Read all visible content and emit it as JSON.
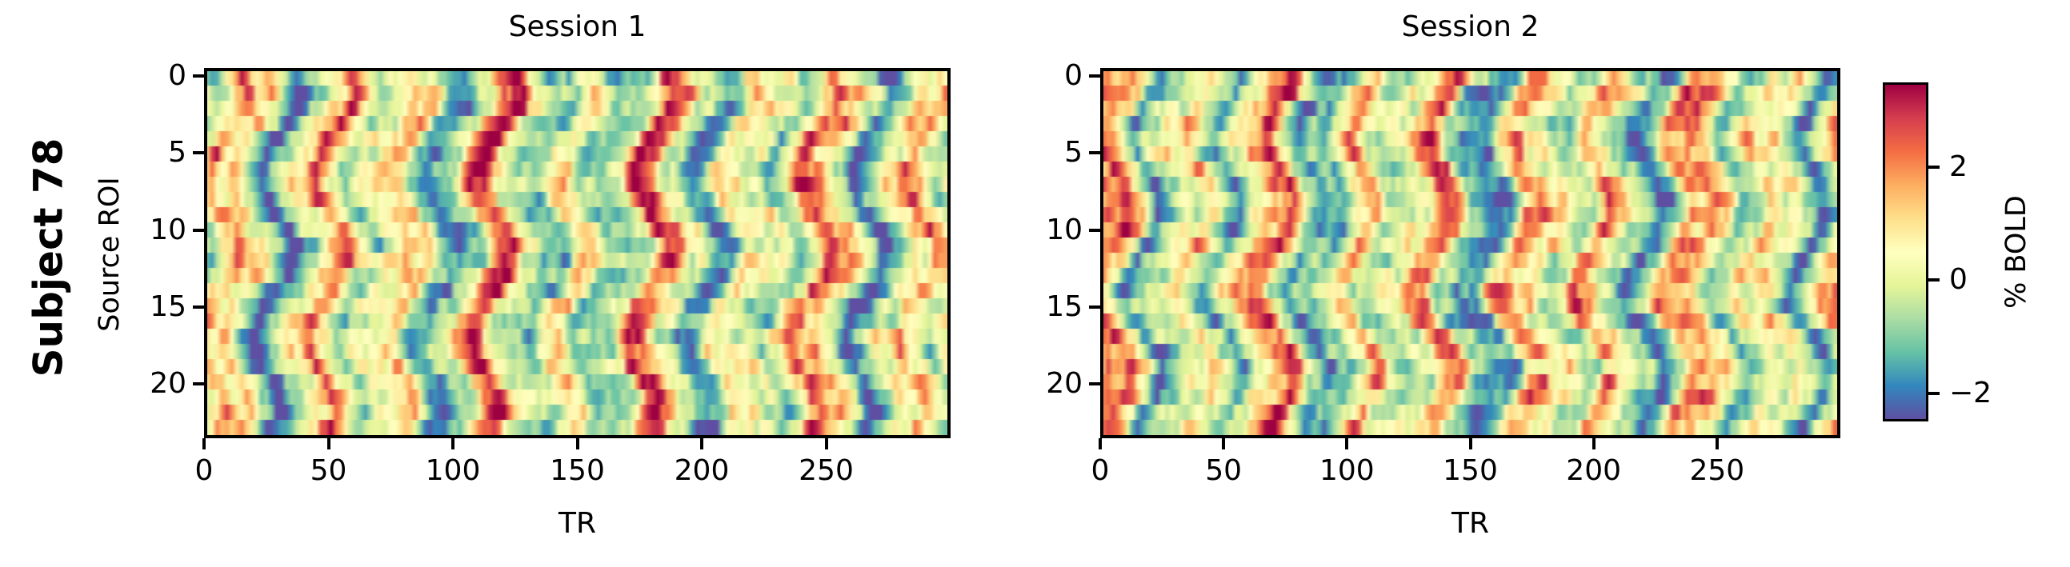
{
  "figure": {
    "row_label": "Subject 78",
    "background": "#ffffff",
    "text_color": "#000000"
  },
  "chart_data": [
    {
      "type": "heatmap",
      "title": "Session 1",
      "xlabel": "TR",
      "ylabel": "Source ROI",
      "x_range": [
        0,
        300
      ],
      "n_rows": 24,
      "n_cols": 300,
      "x_ticks": [
        0,
        50,
        100,
        150,
        200,
        250
      ],
      "x_tick_labels": [
        "0",
        "50",
        "100",
        "150",
        "200",
        "250"
      ],
      "y_ticks": [
        0,
        5,
        10,
        15,
        20
      ],
      "y_tick_labels": [
        "0",
        "5",
        "10",
        "15",
        "20"
      ],
      "vmin": -2.5,
      "vmax": 3.5,
      "grid": false,
      "seed": 78101
    },
    {
      "type": "heatmap",
      "title": "Session 2",
      "xlabel": "TR",
      "ylabel": "Source ROI",
      "x_range": [
        0,
        300
      ],
      "n_rows": 24,
      "n_cols": 300,
      "x_ticks": [
        0,
        50,
        100,
        150,
        200,
        250
      ],
      "x_tick_labels": [
        "0",
        "50",
        "100",
        "150",
        "200",
        "250"
      ],
      "y_ticks": [
        0,
        5,
        10,
        15,
        20
      ],
      "y_tick_labels": [
        "0",
        "5",
        "10",
        "15",
        "20"
      ],
      "vmin": -2.5,
      "vmax": 3.5,
      "grid": false,
      "seed": 78202
    }
  ],
  "colorbar": {
    "label": "% BOLD",
    "vmin": -2.5,
    "vmax": 3.5,
    "ticks": [
      {
        "value": 2,
        "label": "2"
      },
      {
        "value": 0,
        "label": "0"
      },
      {
        "value": -2,
        "label": "−2"
      }
    ],
    "colormap": {
      "name": "Spectral_r",
      "stops": [
        [
          0.0,
          "#5e4fa2"
        ],
        [
          0.1,
          "#3288bd"
        ],
        [
          0.2,
          "#66c2a5"
        ],
        [
          0.3,
          "#abdda4"
        ],
        [
          0.4,
          "#e6f598"
        ],
        [
          0.5,
          "#ffffbf"
        ],
        [
          0.6,
          "#fee08b"
        ],
        [
          0.7,
          "#fdae61"
        ],
        [
          0.8,
          "#f46d43"
        ],
        [
          0.9,
          "#d53e4f"
        ],
        [
          1.0,
          "#9e0142"
        ]
      ]
    }
  }
}
